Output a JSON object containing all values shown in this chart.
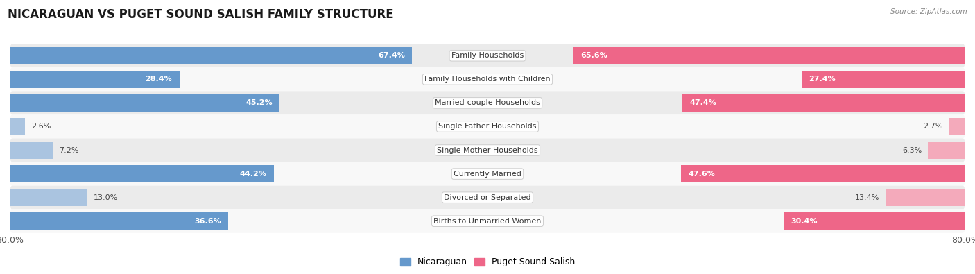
{
  "title": "NICARAGUAN VS PUGET SOUND SALISH FAMILY STRUCTURE",
  "source": "Source: ZipAtlas.com",
  "categories": [
    "Family Households",
    "Family Households with Children",
    "Married-couple Households",
    "Single Father Households",
    "Single Mother Households",
    "Currently Married",
    "Divorced or Separated",
    "Births to Unmarried Women"
  ],
  "nicaraguan_values": [
    67.4,
    28.4,
    45.2,
    2.6,
    7.2,
    44.2,
    13.0,
    36.6
  ],
  "puget_values": [
    65.6,
    27.4,
    47.4,
    2.7,
    6.3,
    47.6,
    13.4,
    30.4
  ],
  "x_max": 80.0,
  "blue_strong": "#6699cc",
  "pink_strong": "#ee6688",
  "blue_light": "#aac4e0",
  "pink_light": "#f4aabb",
  "bar_height": 0.72,
  "row_bg_light": "#ebebeb",
  "row_bg_white": "#f8f8f8",
  "label_fontsize": 8.0,
  "title_fontsize": 12,
  "threshold": 15
}
